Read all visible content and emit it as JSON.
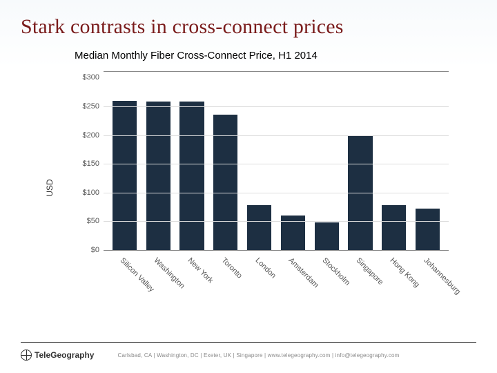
{
  "title": "Stark contrasts in cross-connect prices",
  "subtitle": "Median Monthly Fiber Cross-Connect Price, H1 2014",
  "chart": {
    "type": "bar",
    "ylabel": "USD",
    "ylim_max": 310,
    "yticks": [
      0,
      50,
      100,
      150,
      200,
      250,
      300
    ],
    "ytick_prefix": "$",
    "bar_color": "#1d2f42",
    "grid_color": "#dcdcdc",
    "axis_color": "#888888",
    "background_color": "#ffffff",
    "label_fontsize": 11,
    "ylabel_fontsize": 12,
    "categories": [
      "Silicon Valley",
      "Washington",
      "New York",
      "Toronto",
      "London",
      "Amsterdam",
      "Stockholm",
      "Singapore",
      "Hong Kong",
      "Johannesburg"
    ],
    "values": [
      260,
      258,
      258,
      235,
      78,
      60,
      48,
      200,
      78,
      72
    ]
  },
  "footer": {
    "logo_text": "TeleGeography",
    "text": "Carlsbad, CA | Washington, DC | Exeter, UK | Singapore | www.telegeography.com | info@telegeography.com"
  }
}
